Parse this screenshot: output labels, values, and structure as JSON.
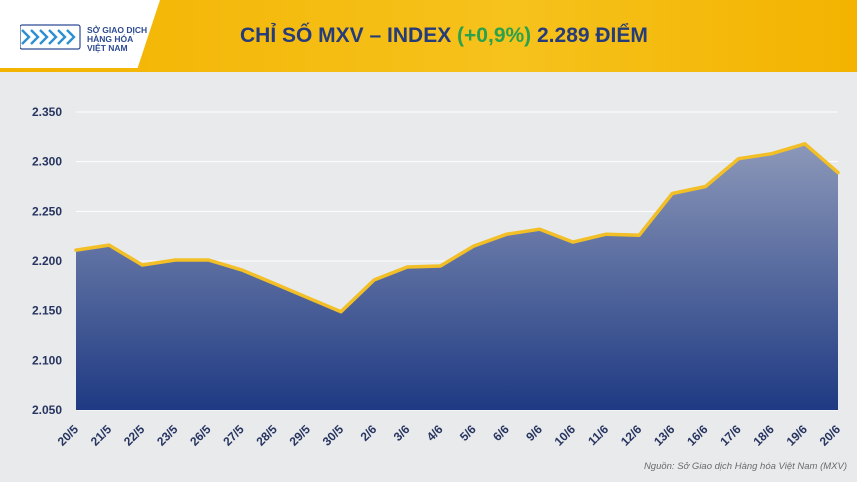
{
  "header": {
    "logo_lines": [
      "SỞ GIAO DỊCH",
      "HÀNG HÓA",
      "VIỆT NAM"
    ],
    "title_prefix": "CHỈ SỐ MXV – INDEX ",
    "title_change": "(+0,9%)",
    "title_suffix": " 2.289 ĐIỂM"
  },
  "source": "Nguồn: Sở Giao dịch Hàng hóa Việt Nam (MXV)",
  "colors": {
    "header": "#f3b300",
    "title": "#263c7a",
    "change": "#2aa14d",
    "line": "#f2bf26",
    "area_top": "#8c98b9",
    "area_bottom": "#1f3a83"
  },
  "chart_data": {
    "type": "area",
    "categories": [
      "20/5",
      "21/5",
      "22/5",
      "23/5",
      "26/5",
      "27/5",
      "28/5",
      "29/5",
      "30/5",
      "2/6",
      "3/6",
      "4/6",
      "5/6",
      "6/6",
      "9/6",
      "10/6",
      "11/6",
      "12/6",
      "13/6",
      "16/6",
      "17/6",
      "18/6",
      "19/6",
      "20/6"
    ],
    "values": [
      2211,
      2216,
      2196,
      2201,
      2201,
      2191,
      2177,
      2163,
      2149,
      2181,
      2194,
      2195,
      2215,
      2227,
      2232,
      2219,
      2227,
      2226,
      2268,
      2275,
      2303,
      2308,
      2318,
      2289
    ],
    "y_ticks": [
      "2.350",
      "2.300",
      "2.250",
      "2.200",
      "2.150",
      "2.100",
      "2.050"
    ],
    "ylim": [
      2050,
      2350
    ],
    "grid": "horizontal"
  }
}
